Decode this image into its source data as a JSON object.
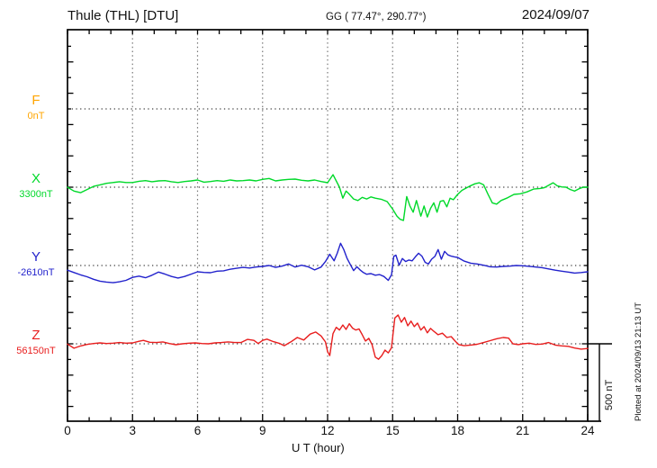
{
  "header": {
    "station_title": "Thule (THL)  [DTU]",
    "coords": "GG ( 77.47°, 290.77°)",
    "date": "2024/09/07"
  },
  "footer": {
    "xaxis_label": "U T (hour)"
  },
  "side": {
    "scale_label": "500 nT",
    "plotted_at": "Plotted at 2024/09/13 21:13 UT"
  },
  "channels": [
    {
      "id": "F",
      "label": "F",
      "value": "0nT",
      "color": "#ffa500"
    },
    {
      "id": "X",
      "label": "X",
      "value": "3300nT",
      "color": "#00d92a"
    },
    {
      "id": "Y",
      "label": "Y",
      "value": "-2610nT",
      "color": "#2222cc"
    },
    {
      "id": "Z",
      "label": "Z",
      "value": "56150nT",
      "color": "#e81e1e"
    }
  ],
  "chart_data": {
    "type": "line",
    "title": "Thule (THL) [DTU] magnetogram 2024/09/07",
    "xlabel": "U T (hour)",
    "x_range": [
      0,
      24
    ],
    "x_ticks": [
      0,
      3,
      6,
      9,
      12,
      15,
      18,
      21,
      24
    ],
    "x_minor_tick_hours": 1,
    "grid": "dotted vertical lines every 3 h; dotted horizontal line at each channel baseline",
    "scale_bar_nT": 500,
    "y_tick_step_nT": 100,
    "note": "F channel baseline labelled 0nT has no plotted trace; X, Y, Z values are offsets in nT from each channel baseline",
    "series": [
      {
        "name": "X",
        "baseline_nT": 3300,
        "color": "#00d92a",
        "points": [
          [
            0,
            0
          ],
          [
            0.3,
            -25
          ],
          [
            0.6,
            -35
          ],
          [
            0.9,
            -15
          ],
          [
            1.2,
            5
          ],
          [
            1.5,
            15
          ],
          [
            1.8,
            25
          ],
          [
            2.1,
            30
          ],
          [
            2.4,
            35
          ],
          [
            2.7,
            30
          ],
          [
            3.0,
            30
          ],
          [
            3.3,
            38
          ],
          [
            3.6,
            42
          ],
          [
            3.9,
            35
          ],
          [
            4.2,
            40
          ],
          [
            4.5,
            42
          ],
          [
            4.8,
            35
          ],
          [
            5.1,
            30
          ],
          [
            5.4,
            36
          ],
          [
            5.7,
            40
          ],
          [
            6.0,
            46
          ],
          [
            6.3,
            32
          ],
          [
            6.6,
            36
          ],
          [
            6.9,
            42
          ],
          [
            7.2,
            38
          ],
          [
            7.5,
            46
          ],
          [
            7.8,
            40
          ],
          [
            8.1,
            42
          ],
          [
            8.4,
            46
          ],
          [
            8.7,
            40
          ],
          [
            9.0,
            50
          ],
          [
            9.3,
            56
          ],
          [
            9.6,
            40
          ],
          [
            9.9,
            46
          ],
          [
            10.2,
            50
          ],
          [
            10.5,
            52
          ],
          [
            10.8,
            44
          ],
          [
            11.1,
            40
          ],
          [
            11.4,
            46
          ],
          [
            11.7,
            36
          ],
          [
            12.0,
            29
          ],
          [
            12.25,
            80
          ],
          [
            12.4,
            40
          ],
          [
            12.55,
            0
          ],
          [
            12.7,
            -70
          ],
          [
            12.85,
            -25
          ],
          [
            13.0,
            -45
          ],
          [
            13.2,
            -75
          ],
          [
            13.4,
            -85
          ],
          [
            13.6,
            -65
          ],
          [
            13.8,
            -75
          ],
          [
            14.0,
            -62
          ],
          [
            14.2,
            -70
          ],
          [
            14.5,
            -78
          ],
          [
            14.75,
            -92
          ],
          [
            15.0,
            -140
          ],
          [
            15.2,
            -185
          ],
          [
            15.35,
            -205
          ],
          [
            15.5,
            -212
          ],
          [
            15.65,
            -60
          ],
          [
            15.8,
            -120
          ],
          [
            15.95,
            -160
          ],
          [
            16.1,
            -85
          ],
          [
            16.3,
            -185
          ],
          [
            16.45,
            -120
          ],
          [
            16.6,
            -190
          ],
          [
            16.75,
            -135
          ],
          [
            16.9,
            -100
          ],
          [
            17.05,
            -160
          ],
          [
            17.2,
            -90
          ],
          [
            17.35,
            -85
          ],
          [
            17.5,
            -125
          ],
          [
            17.65,
            -70
          ],
          [
            17.8,
            -80
          ],
          [
            18.0,
            -46
          ],
          [
            18.2,
            -20
          ],
          [
            18.4,
            -5
          ],
          [
            18.6,
            10
          ],
          [
            18.8,
            22
          ],
          [
            19.0,
            28
          ],
          [
            19.2,
            15
          ],
          [
            19.4,
            -45
          ],
          [
            19.6,
            -100
          ],
          [
            19.8,
            -108
          ],
          [
            20.0,
            -85
          ],
          [
            20.3,
            -68
          ],
          [
            20.6,
            -46
          ],
          [
            20.9,
            -42
          ],
          [
            21.2,
            -30
          ],
          [
            21.5,
            -12
          ],
          [
            21.8,
            -8
          ],
          [
            22.0,
            -3
          ],
          [
            22.2,
            12
          ],
          [
            22.4,
            28
          ],
          [
            22.6,
            8
          ],
          [
            22.8,
            2
          ],
          [
            23.0,
            0
          ],
          [
            23.2,
            -15
          ],
          [
            23.4,
            -25
          ],
          [
            23.6,
            -10
          ],
          [
            23.8,
            0
          ],
          [
            24,
            0
          ]
        ]
      },
      {
        "name": "Y",
        "baseline_nT": -2610,
        "color": "#2222cc",
        "points": [
          [
            0,
            -30
          ],
          [
            0.3,
            -45
          ],
          [
            0.6,
            -60
          ],
          [
            0.9,
            -72
          ],
          [
            1.2,
            -88
          ],
          [
            1.5,
            -100
          ],
          [
            1.8,
            -106
          ],
          [
            2.1,
            -110
          ],
          [
            2.4,
            -104
          ],
          [
            2.7,
            -95
          ],
          [
            3.0,
            -76
          ],
          [
            3.3,
            -68
          ],
          [
            3.6,
            -78
          ],
          [
            3.9,
            -62
          ],
          [
            4.2,
            -42
          ],
          [
            4.5,
            -55
          ],
          [
            4.8,
            -70
          ],
          [
            5.1,
            -80
          ],
          [
            5.4,
            -70
          ],
          [
            5.7,
            -55
          ],
          [
            6.0,
            -40
          ],
          [
            6.3,
            -44
          ],
          [
            6.6,
            -46
          ],
          [
            6.9,
            -36
          ],
          [
            7.2,
            -34
          ],
          [
            7.5,
            -24
          ],
          [
            7.8,
            -18
          ],
          [
            8.1,
            -12
          ],
          [
            8.4,
            -16
          ],
          [
            8.7,
            -10
          ],
          [
            9.0,
            -6
          ],
          [
            9.3,
            0
          ],
          [
            9.6,
            -12
          ],
          [
            9.9,
            -4
          ],
          [
            10.2,
            10
          ],
          [
            10.5,
            -10
          ],
          [
            10.8,
            2
          ],
          [
            11.1,
            -8
          ],
          [
            11.4,
            -28
          ],
          [
            11.7,
            -10
          ],
          [
            11.9,
            25
          ],
          [
            12.1,
            72
          ],
          [
            12.3,
            30
          ],
          [
            12.45,
            80
          ],
          [
            12.6,
            142
          ],
          [
            12.75,
            100
          ],
          [
            12.9,
            45
          ],
          [
            13.05,
            5
          ],
          [
            13.2,
            -33
          ],
          [
            13.35,
            -8
          ],
          [
            13.5,
            -28
          ],
          [
            13.65,
            -45
          ],
          [
            13.8,
            -56
          ],
          [
            14.0,
            -52
          ],
          [
            14.2,
            -62
          ],
          [
            14.4,
            -58
          ],
          [
            14.6,
            -70
          ],
          [
            14.8,
            -95
          ],
          [
            14.95,
            -60
          ],
          [
            15.05,
            58
          ],
          [
            15.15,
            66
          ],
          [
            15.3,
            2
          ],
          [
            15.45,
            45
          ],
          [
            15.6,
            25
          ],
          [
            15.75,
            35
          ],
          [
            15.9,
            30
          ],
          [
            16.05,
            55
          ],
          [
            16.2,
            78
          ],
          [
            16.35,
            60
          ],
          [
            16.5,
            20
          ],
          [
            16.65,
            10
          ],
          [
            16.8,
            40
          ],
          [
            16.95,
            58
          ],
          [
            17.1,
            102
          ],
          [
            17.25,
            40
          ],
          [
            17.4,
            90
          ],
          [
            17.55,
            68
          ],
          [
            17.7,
            60
          ],
          [
            17.85,
            55
          ],
          [
            18.0,
            52
          ],
          [
            18.3,
            28
          ],
          [
            18.6,
            15
          ],
          [
            18.9,
            10
          ],
          [
            19.2,
            2
          ],
          [
            19.5,
            -8
          ],
          [
            19.8,
            -10
          ],
          [
            20.1,
            -6
          ],
          [
            20.4,
            -4
          ],
          [
            20.7,
            0
          ],
          [
            21.0,
            -2
          ],
          [
            21.3,
            -5
          ],
          [
            21.6,
            -10
          ],
          [
            21.9,
            -14
          ],
          [
            22.2,
            -22
          ],
          [
            22.5,
            -30
          ],
          [
            22.8,
            -36
          ],
          [
            23.1,
            -42
          ],
          [
            23.4,
            -48
          ],
          [
            23.7,
            -45
          ],
          [
            24.0,
            -40
          ]
        ]
      },
      {
        "name": "Z",
        "baseline_nT": 56150,
        "color": "#e81e1e",
        "points": [
          [
            0,
            -2
          ],
          [
            0.3,
            -28
          ],
          [
            0.6,
            -14
          ],
          [
            0.9,
            -4
          ],
          [
            1.2,
            2
          ],
          [
            1.5,
            6
          ],
          [
            1.8,
            2
          ],
          [
            2.1,
            4
          ],
          [
            2.4,
            8
          ],
          [
            2.7,
            4
          ],
          [
            3.0,
            6
          ],
          [
            3.3,
            16
          ],
          [
            3.5,
            22
          ],
          [
            3.8,
            10
          ],
          [
            4.1,
            8
          ],
          [
            4.4,
            12
          ],
          [
            4.7,
            2
          ],
          [
            5.0,
            -6
          ],
          [
            5.3,
            0
          ],
          [
            5.6,
            4
          ],
          [
            5.9,
            6
          ],
          [
            6.2,
            2
          ],
          [
            6.5,
            0
          ],
          [
            6.8,
            6
          ],
          [
            7.1,
            8
          ],
          [
            7.4,
            12
          ],
          [
            7.7,
            8
          ],
          [
            8.0,
            8
          ],
          [
            8.3,
            28
          ],
          [
            8.6,
            22
          ],
          [
            8.8,
            2
          ],
          [
            9.0,
            22
          ],
          [
            9.2,
            30
          ],
          [
            9.5,
            14
          ],
          [
            9.8,
            2
          ],
          [
            10.0,
            -12
          ],
          [
            10.3,
            12
          ],
          [
            10.6,
            40
          ],
          [
            10.9,
            24
          ],
          [
            11.2,
            62
          ],
          [
            11.45,
            75
          ],
          [
            11.7,
            50
          ],
          [
            11.9,
            12
          ],
          [
            12.0,
            -50
          ],
          [
            12.1,
            -75
          ],
          [
            12.25,
            65
          ],
          [
            12.4,
            105
          ],
          [
            12.55,
            88
          ],
          [
            12.7,
            120
          ],
          [
            12.85,
            92
          ],
          [
            13.0,
            128
          ],
          [
            13.15,
            100
          ],
          [
            13.3,
            88
          ],
          [
            13.45,
            95
          ],
          [
            13.6,
            58
          ],
          [
            13.75,
            18
          ],
          [
            13.9,
            35
          ],
          [
            14.05,
            -5
          ],
          [
            14.2,
            -85
          ],
          [
            14.35,
            -98
          ],
          [
            14.5,
            -75
          ],
          [
            14.65,
            -40
          ],
          [
            14.8,
            -58
          ],
          [
            14.95,
            -25
          ],
          [
            15.1,
            165
          ],
          [
            15.25,
            184
          ],
          [
            15.4,
            138
          ],
          [
            15.55,
            168
          ],
          [
            15.7,
            115
          ],
          [
            15.85,
            145
          ],
          [
            16.0,
            110
          ],
          [
            16.15,
            132
          ],
          [
            16.3,
            88
          ],
          [
            16.45,
            110
          ],
          [
            16.6,
            70
          ],
          [
            16.75,
            98
          ],
          [
            16.9,
            80
          ],
          [
            17.1,
            58
          ],
          [
            17.3,
            68
          ],
          [
            17.5,
            40
          ],
          [
            17.7,
            46
          ],
          [
            17.9,
            15
          ],
          [
            18.05,
            -5
          ],
          [
            18.3,
            -12
          ],
          [
            18.6,
            -8
          ],
          [
            18.9,
            -3
          ],
          [
            19.2,
            8
          ],
          [
            19.5,
            20
          ],
          [
            19.8,
            32
          ],
          [
            20.1,
            40
          ],
          [
            20.35,
            36
          ],
          [
            20.55,
            0
          ],
          [
            20.8,
            -5
          ],
          [
            21.0,
            0
          ],
          [
            21.3,
            4
          ],
          [
            21.6,
            -4
          ],
          [
            21.9,
            -2
          ],
          [
            22.2,
            8
          ],
          [
            22.5,
            -8
          ],
          [
            22.8,
            -13
          ],
          [
            23.1,
            -16
          ],
          [
            23.4,
            -27
          ],
          [
            23.7,
            -34
          ],
          [
            24.0,
            -30
          ]
        ]
      }
    ]
  }
}
